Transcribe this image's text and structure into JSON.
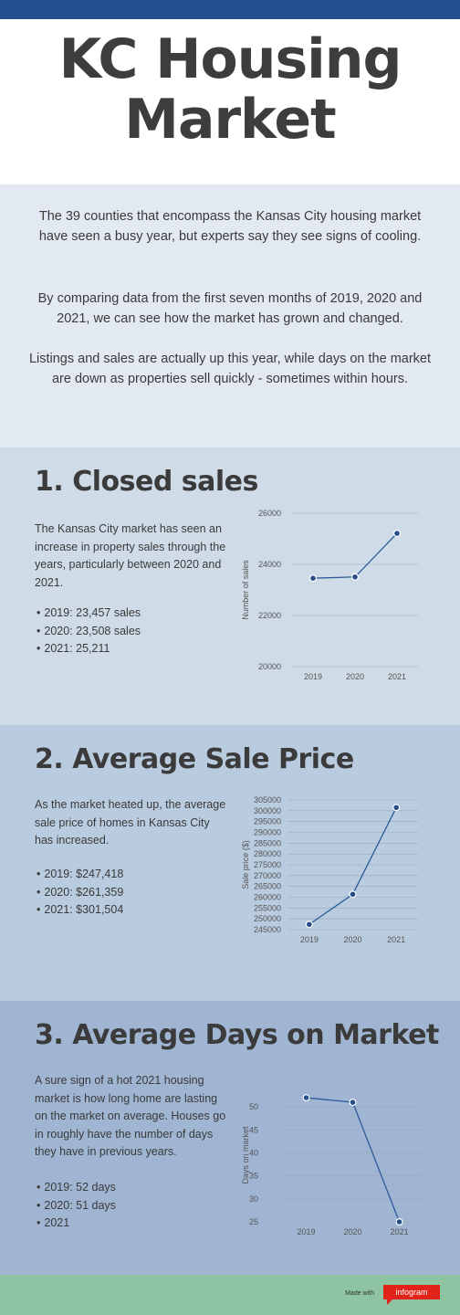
{
  "header": {
    "title_line1": "KC Housing",
    "title_line2": "Market"
  },
  "intro": {
    "p1": "The 39 counties that encompass the Kansas City housing market have seen a busy year, but experts say they see signs of cooling.",
    "p2": "By comparing data from the first seven months of 2019, 2020 and 2021, we can see how the market has grown and changed.",
    "p3": "Listings and sales are actually up this year, while days on the market are down as properties sell quickly - sometimes within hours."
  },
  "sections": [
    {
      "title": "1. Closed sales",
      "desc": "The Kansas City market has seen an increase in property sales through the years, particularly between 2020 and 2021.",
      "bullets": [
        "2019: 23,457 sales",
        "2020: 23,508 sales",
        "2021: 25,211"
      ]
    },
    {
      "title": "2. Average Sale Price",
      "desc": "As the market heated up, the average sale price of homes in Kansas City has increased.",
      "bullets": [
        "2019: $247,418",
        "2020: $261,359",
        "2021: $301,504"
      ]
    },
    {
      "title": "3. Average Days on Market",
      "desc": "A sure sign of a hot 2021 housing market is how long home are lasting on the market on average. Houses go in roughly have the number of days they have in previous years.",
      "bullets": [
        "2019: 52 days",
        "2020: 51 days",
        "2021"
      ]
    }
  ],
  "colors": {
    "line": "#2d5a9a",
    "marker_fill": "#264d86"
  },
  "chart_data": [
    {
      "type": "line",
      "categories": [
        "2019",
        "2020",
        "2021"
      ],
      "series": [
        {
          "values": [
            23457,
            23508,
            25211
          ]
        }
      ],
      "ylabel": "Number of sales",
      "ylim": [
        20000,
        26000
      ],
      "yticks": [
        20000,
        22000,
        24000,
        26000
      ],
      "grid": true
    },
    {
      "type": "line",
      "categories": [
        "2019",
        "2020",
        "2021"
      ],
      "series": [
        {
          "values": [
            247418,
            261359,
            301504
          ]
        }
      ],
      "ylabel": "Sale price ($)",
      "ylim": [
        245000,
        305000
      ],
      "yticks": [
        245000,
        250000,
        255000,
        260000,
        265000,
        270000,
        275000,
        280000,
        285000,
        290000,
        295000,
        300000,
        305000
      ],
      "grid": true
    },
    {
      "type": "line",
      "categories": [
        "2019",
        "2020",
        "2021"
      ],
      "series": [
        {
          "values": [
            52,
            51,
            25
          ]
        }
      ],
      "ylabel": "Days on market",
      "ylim": [
        25,
        54
      ],
      "yticks": [
        25,
        30,
        35,
        40,
        45,
        50
      ],
      "grid": true
    }
  ],
  "footer": {
    "made_with": "Made with",
    "brand": "infogram"
  }
}
